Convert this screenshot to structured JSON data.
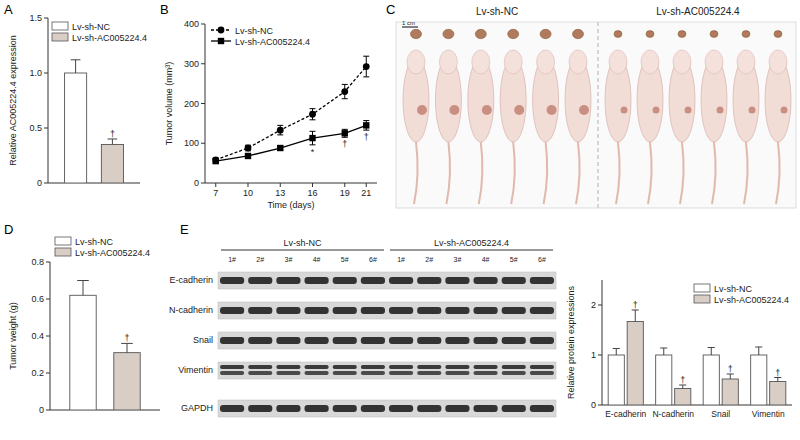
{
  "panel_letters": [
    "A",
    "B",
    "C",
    "D",
    "E"
  ],
  "chart_data": [
    {
      "type": "bar",
      "y_label": "Relative AC005224.4 expression",
      "categories": [
        null
      ],
      "series": [
        {
          "name": "Lv-sh-NC",
          "color": "#ffffff",
          "values": [
            1.0
          ],
          "errors": [
            0.12
          ]
        },
        {
          "name": "Lv-sh-AC005224.4",
          "color": "#d9cec6",
          "values": [
            0.35
          ],
          "errors": [
            0.05
          ],
          "annotations": [
            "†"
          ]
        }
      ],
      "ylim": [
        0,
        1.5
      ],
      "yticks": [
        0,
        0.5,
        {
          "value": 1,
          "label": "1.0"
        },
        1.5
      ],
      "legend": "top-left"
    },
    {
      "type": "line",
      "x_label": "Time (days)",
      "y_label": "Tumor volume (mm³)",
      "x": [
        7,
        10,
        13,
        16,
        19,
        21
      ],
      "xlim": [
        6,
        22
      ],
      "xticks": [
        7,
        10,
        13,
        16,
        19,
        21
      ],
      "ylim": [
        0,
        400
      ],
      "yticks": [
        0,
        100,
        200,
        300,
        400
      ],
      "series": [
        {
          "name": "Lv-sh-NC",
          "color": "#000000",
          "marker": "circle",
          "line_style": "dashed",
          "values": [
            58,
            88,
            133,
            173,
            230,
            293
          ],
          "errors": [
            5,
            7,
            12,
            14,
            18,
            26
          ]
        },
        {
          "name": "Lv-sh-AC005224.4",
          "color": "#000000",
          "marker": "square",
          "line_style": "solid",
          "values": [
            55,
            68,
            88,
            113,
            125,
            145
          ],
          "errors": [
            5,
            6,
            6,
            17,
            10,
            12
          ],
          "annotations": [
            null,
            null,
            null,
            "*",
            "†",
            "†"
          ]
        }
      ],
      "legend": "top-left"
    },
    {
      "type": "bar",
      "y_label": "Tumor weight (g)",
      "categories": [
        null
      ],
      "series": [
        {
          "name": "Lv-sh-NC",
          "color": "#ffffff",
          "values": [
            0.62
          ],
          "errors": [
            0.08
          ]
        },
        {
          "name": "Lv-sh-AC005224.4",
          "color": "#d9cec6",
          "values": [
            0.31
          ],
          "errors": [
            0.05
          ],
          "annotations": [
            "†"
          ]
        }
      ],
      "ylim": [
        0,
        0.8
      ],
      "yticks": [
        0,
        0.2,
        0.4,
        0.6,
        0.8
      ],
      "legend": "top"
    },
    {
      "type": "bar",
      "y_label": "Relative protein expressions",
      "categories": [
        "E-cadherin",
        "N-cadherin",
        "Snail",
        "Vimentin"
      ],
      "series": [
        {
          "name": "Lv-sh-NC",
          "color": "#ffffff",
          "values": [
            1.0,
            1.0,
            1.0,
            1.0
          ],
          "errors": [
            0.13,
            0.14,
            0.15,
            0.16
          ]
        },
        {
          "name": "Lv-sh-AC005224.4",
          "color": "#d9cec6",
          "values": [
            1.67,
            0.33,
            0.52,
            0.47
          ],
          "errors": [
            0.23,
            0.07,
            0.1,
            0.08
          ],
          "annotations": [
            "†",
            "†",
            "†",
            "†"
          ]
        }
      ],
      "ylim": [
        0,
        2.5
      ],
      "yticks": [
        0,
        1,
        2
      ],
      "legend": "top-right"
    }
  ],
  "photo": {
    "groups": [
      "Lv-sh-NC",
      "Lv-sh-AC005224.4"
    ],
    "scale_bar": "1 cm"
  },
  "blot": {
    "groups": [
      "Lv-sh-NC",
      "Lv-sh-AC005224.4"
    ],
    "lanes": [
      "1#",
      "2#",
      "3#",
      "4#",
      "5#",
      "6#"
    ],
    "proteins": [
      "E-cadherin",
      "N-cadherin",
      "Snail",
      "Vimentin",
      "GAPDH"
    ]
  }
}
